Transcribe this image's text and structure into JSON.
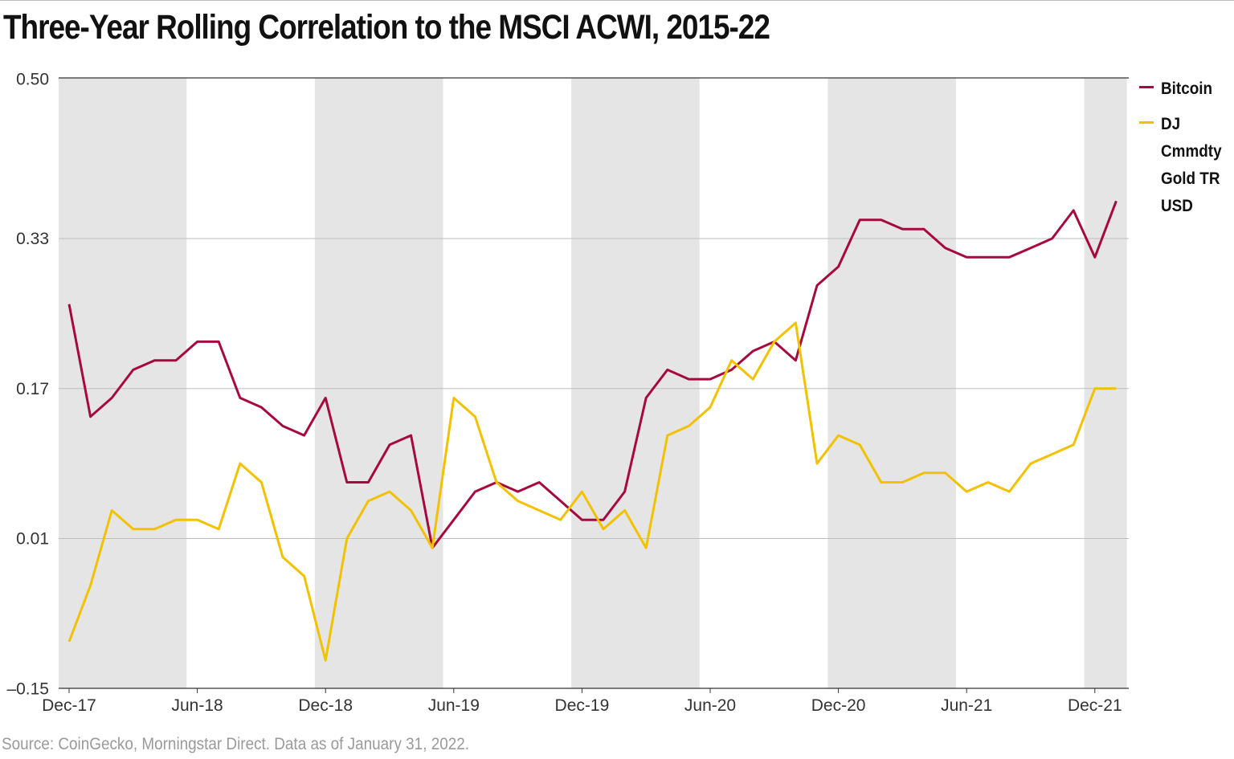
{
  "title": "Three-Year Rolling Correlation to the MSCI ACWI, 2015-22",
  "source": "Source: CoinGecko, Morningstar Direct. Data as of January 31, 2022.",
  "chart_data": {
    "type": "line",
    "title": "Three-Year Rolling Correlation to the MSCI ACWI, 2015-22",
    "xlabel": "",
    "ylabel": "",
    "ylim": [
      -0.17,
      0.52
    ],
    "y_ticks": [
      {
        "value": 0.5,
        "label": "0.50"
      },
      {
        "value": 0.33,
        "label": "0.33"
      },
      {
        "value": 0.17,
        "label": "0.17"
      },
      {
        "value": 0.01,
        "label": "0.01"
      },
      {
        "value": -0.15,
        "label": "–0.15"
      }
    ],
    "x_ticks": [
      {
        "index": 0,
        "label": "Dec-17"
      },
      {
        "index": 6,
        "label": "Jun-18"
      },
      {
        "index": 12,
        "label": "Dec-18"
      },
      {
        "index": 18,
        "label": "Jun-19"
      },
      {
        "index": 24,
        "label": "Dec-19"
      },
      {
        "index": 30,
        "label": "Jun-20"
      },
      {
        "index": 36,
        "label": "Dec-20"
      },
      {
        "index": 42,
        "label": "Jun-21"
      },
      {
        "index": 48,
        "label": "Dec-21"
      }
    ],
    "x": [
      "Dec-17",
      "Jan-18",
      "Feb-18",
      "Mar-18",
      "Apr-18",
      "May-18",
      "Jun-18",
      "Jul-18",
      "Aug-18",
      "Sep-18",
      "Oct-18",
      "Nov-18",
      "Dec-18",
      "Jan-19",
      "Feb-19",
      "Mar-19",
      "Apr-19",
      "May-19",
      "Jun-19",
      "Jul-19",
      "Aug-19",
      "Sep-19",
      "Oct-19",
      "Nov-19",
      "Dec-19",
      "Jan-20",
      "Feb-20",
      "Mar-20",
      "Apr-20",
      "May-20",
      "Jun-20",
      "Jul-20",
      "Aug-20",
      "Sep-20",
      "Oct-20",
      "Nov-20",
      "Dec-20",
      "Jan-21",
      "Feb-21",
      "Mar-21",
      "Apr-21",
      "May-21",
      "Jun-21",
      "Jul-21",
      "Aug-21",
      "Sep-21",
      "Oct-21",
      "Nov-21",
      "Dec-21",
      "Jan-22"
    ],
    "series": [
      {
        "name": "Bitcoin",
        "color": "#a6093d",
        "values": [
          0.26,
          0.14,
          0.16,
          0.19,
          0.2,
          0.2,
          0.22,
          0.22,
          0.16,
          0.15,
          0.13,
          0.12,
          0.16,
          0.07,
          0.07,
          0.11,
          0.12,
          0.0,
          0.03,
          0.06,
          0.07,
          0.06,
          0.07,
          0.05,
          0.03,
          0.03,
          0.06,
          0.16,
          0.19,
          0.18,
          0.18,
          0.19,
          0.21,
          0.22,
          0.2,
          0.28,
          0.3,
          0.35,
          0.35,
          0.34,
          0.34,
          0.32,
          0.31,
          0.31,
          0.31,
          0.32,
          0.33,
          0.36,
          0.31,
          0.37
        ]
      },
      {
        "name": "DJ Cmmdty Gold TR USD",
        "color": "#f2c100",
        "values": [
          -0.1,
          -0.04,
          0.04,
          0.02,
          0.02,
          0.03,
          0.03,
          0.02,
          0.09,
          0.07,
          -0.01,
          -0.03,
          -0.12,
          0.01,
          0.05,
          0.06,
          0.04,
          0.0,
          0.16,
          0.14,
          0.07,
          0.05,
          0.04,
          0.03,
          0.06,
          0.02,
          0.04,
          0.0,
          0.12,
          0.13,
          0.15,
          0.2,
          0.18,
          0.22,
          0.24,
          0.09,
          0.12,
          0.11,
          0.07,
          0.07,
          0.08,
          0.08,
          0.06,
          0.07,
          0.06,
          0.09,
          0.1,
          0.11,
          0.17,
          0.17
        ]
      }
    ],
    "shaded_bands": [
      {
        "from": 0,
        "to": 6
      },
      {
        "from": 12,
        "to": 18
      },
      {
        "from": 24,
        "to": 30
      },
      {
        "from": 36,
        "to": 42
      },
      {
        "from": 48,
        "to": 50
      }
    ],
    "grid": true,
    "legend": "right"
  }
}
